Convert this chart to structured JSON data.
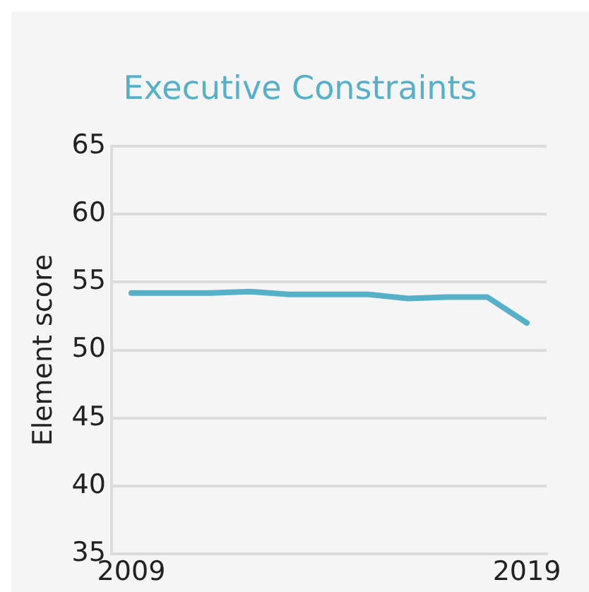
{
  "chart_data": {
    "type": "line",
    "title": "Executive Constraints",
    "ylabel": "Element score",
    "x": [
      2009,
      2010,
      2011,
      2012,
      2013,
      2014,
      2015,
      2016,
      2017,
      2018,
      2019
    ],
    "series": [
      {
        "color": "#56b1c8",
        "values": [
          54.2,
          54.2,
          54.2,
          54.3,
          54.1,
          54.1,
          54.1,
          53.8,
          53.9,
          53.9,
          52.0
        ]
      }
    ],
    "xlim": [
      2008.5,
      2019.5
    ],
    "xticks": [
      2009,
      2019
    ],
    "ylim": [
      35,
      65
    ],
    "yticks": [
      35,
      40,
      45,
      50,
      55,
      60,
      65
    ],
    "grid": "y",
    "legend": false,
    "marker": "none",
    "line_style": "solid"
  }
}
